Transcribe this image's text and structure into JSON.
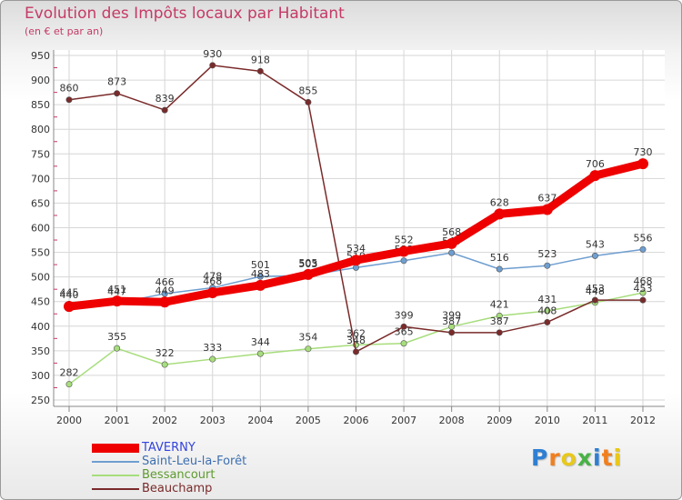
{
  "header": {
    "title": "Evolution des Impôts locaux par Habitant",
    "subtitle": "(en € et par an)"
  },
  "logo": {
    "letters": [
      "P",
      "r",
      "o",
      "x",
      "i",
      "t",
      "i"
    ],
    "colors": [
      "#2e7fd3",
      "#f07f1f",
      "#e8c81b",
      "#49b245",
      "#2e7fd3",
      "#f07f1f",
      "#e8c81b"
    ]
  },
  "chart_data": {
    "type": "line",
    "title": "Evolution des Impôts locaux par Habitant",
    "subtitle": "(en € et par an)",
    "xlabel": "",
    "ylabel": "",
    "x": [
      "2000",
      "2001",
      "2002",
      "2003",
      "2004",
      "2005",
      "2006",
      "2007",
      "2008",
      "2009",
      "2010",
      "2011",
      "2012"
    ],
    "ylim": [
      250,
      950
    ],
    "yticks": [
      250,
      300,
      350,
      400,
      450,
      500,
      550,
      600,
      650,
      700,
      750,
      800,
      850,
      900,
      950
    ],
    "grid": true,
    "legend_position": "bottom-left",
    "series": [
      {
        "name": "Saint-Leu-la-Forêt",
        "color": "#6f9ed0",
        "values": [
          445,
          447,
          466,
          478,
          501,
          503,
          519,
          533,
          549,
          516,
          523,
          543,
          556
        ]
      },
      {
        "name": "Bessancourt",
        "color": "#a7dd7c",
        "values": [
          282,
          355,
          322,
          333,
          344,
          354,
          362,
          365,
          399,
          421,
          431,
          448,
          468
        ]
      },
      {
        "name": "Beauchamp",
        "color": "#7a2a2a",
        "values": [
          860,
          873,
          839,
          930,
          918,
          855,
          348,
          399,
          387,
          387,
          408,
          453,
          453
        ]
      },
      {
        "name": "TAVERNY",
        "color": "#ee0000",
        "values": [
          440,
          451,
          449,
          468,
          483,
          505,
          534,
          552,
          568,
          628,
          637,
          706,
          730
        ]
      }
    ],
    "legend_order": [
      "TAVERNY",
      "Saint-Leu-la-Forêt",
      "Bessancourt",
      "Beauchamp"
    ]
  }
}
